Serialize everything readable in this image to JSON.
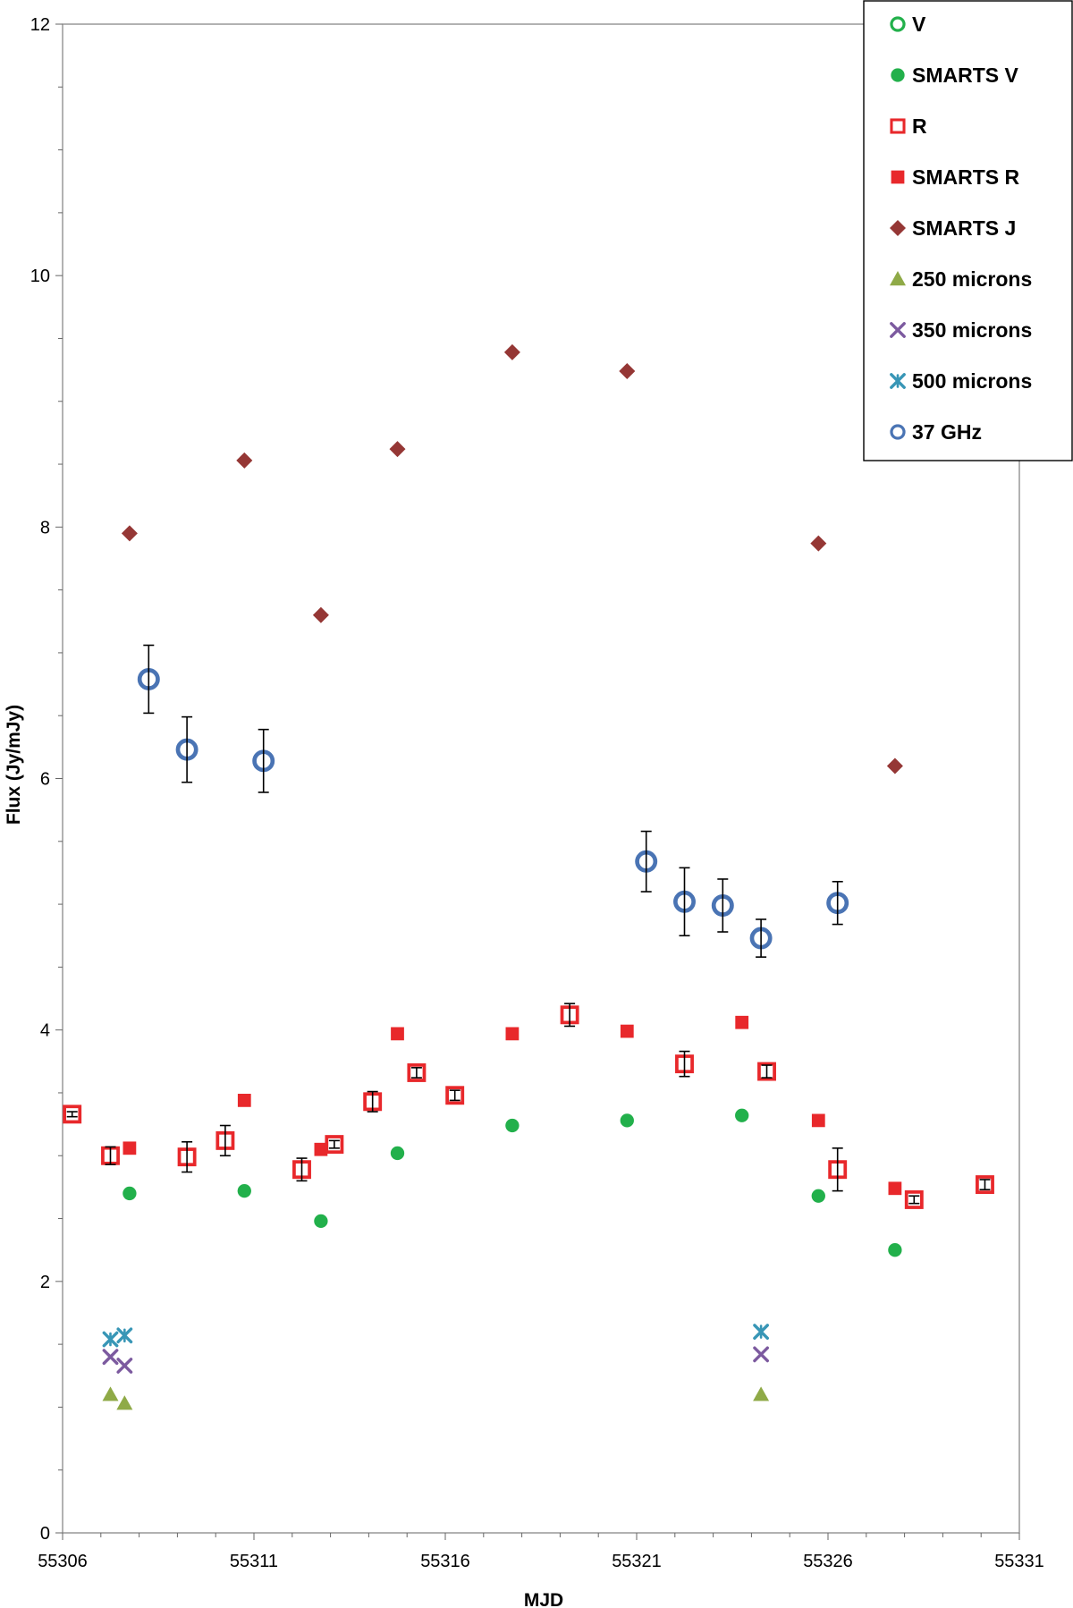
{
  "chart_data": {
    "type": "scatter",
    "title": "",
    "xlabel": "MJD",
    "ylabel": "Flux (Jy/mJy)",
    "xlim": [
      55306,
      55331
    ],
    "ylim": [
      0,
      12
    ],
    "xticks": [
      55306,
      55311,
      55316,
      55321,
      55326,
      55331
    ],
    "yticks": [
      0,
      2,
      4,
      6,
      8,
      10,
      12
    ],
    "grid": false,
    "legend_position": "top-right",
    "series": [
      {
        "name": "V",
        "marker": "circle-open",
        "color": "#22b04b",
        "points": []
      },
      {
        "name": "SMARTS V",
        "marker": "circle-filled",
        "color": "#22b04b",
        "points": [
          {
            "x": 55307.75,
            "y": 2.7
          },
          {
            "x": 55310.75,
            "y": 2.72
          },
          {
            "x": 55312.75,
            "y": 2.48
          },
          {
            "x": 55314.75,
            "y": 3.02
          },
          {
            "x": 55317.75,
            "y": 3.24
          },
          {
            "x": 55320.75,
            "y": 3.28
          },
          {
            "x": 55323.75,
            "y": 3.32
          },
          {
            "x": 55325.75,
            "y": 2.68
          },
          {
            "x": 55327.75,
            "y": 2.25
          }
        ]
      },
      {
        "name": "R",
        "marker": "square-open",
        "color": "#e8282b",
        "points": [
          {
            "x": 55306.25,
            "y": 3.33,
            "err": 0.02
          },
          {
            "x": 55307.25,
            "y": 3.0,
            "err": 0.07
          },
          {
            "x": 55309.25,
            "y": 2.99,
            "err": 0.12
          },
          {
            "x": 55310.25,
            "y": 3.12,
            "err": 0.12
          },
          {
            "x": 55312.25,
            "y": 2.89,
            "err": 0.09
          },
          {
            "x": 55313.1,
            "y": 3.09,
            "err": 0.03
          },
          {
            "x": 55314.1,
            "y": 3.43,
            "err": 0.08
          },
          {
            "x": 55315.25,
            "y": 3.66,
            "err": 0.04
          },
          {
            "x": 55316.25,
            "y": 3.48,
            "err": 0.04
          },
          {
            "x": 55319.25,
            "y": 4.12,
            "err": 0.09
          },
          {
            "x": 55322.25,
            "y": 3.73,
            "err": 0.1
          },
          {
            "x": 55324.4,
            "y": 3.67,
            "err": 0.05
          },
          {
            "x": 55326.25,
            "y": 2.89,
            "err": 0.17
          },
          {
            "x": 55328.25,
            "y": 2.65,
            "err": 0.03
          },
          {
            "x": 55330.1,
            "y": 2.77,
            "err": 0.04
          }
        ]
      },
      {
        "name": "SMARTS R",
        "marker": "square-filled",
        "color": "#e8282b",
        "points": [
          {
            "x": 55307.75,
            "y": 3.06
          },
          {
            "x": 55310.75,
            "y": 3.44
          },
          {
            "x": 55312.75,
            "y": 3.05
          },
          {
            "x": 55314.75,
            "y": 3.97
          },
          {
            "x": 55317.75,
            "y": 3.97
          },
          {
            "x": 55320.75,
            "y": 3.99
          },
          {
            "x": 55323.75,
            "y": 4.06
          },
          {
            "x": 55325.75,
            "y": 3.28
          },
          {
            "x": 55327.75,
            "y": 2.74
          }
        ]
      },
      {
        "name": "SMARTS J",
        "marker": "diamond-filled",
        "color": "#953735",
        "points": [
          {
            "x": 55307.75,
            "y": 7.95
          },
          {
            "x": 55310.75,
            "y": 8.53
          },
          {
            "x": 55312.75,
            "y": 7.3
          },
          {
            "x": 55314.75,
            "y": 8.62
          },
          {
            "x": 55317.75,
            "y": 9.39
          },
          {
            "x": 55320.75,
            "y": 9.24
          },
          {
            "x": 55325.75,
            "y": 7.87
          },
          {
            "x": 55327.75,
            "y": 6.1
          }
        ]
      },
      {
        "name": "250 microns",
        "marker": "triangle-filled",
        "color": "#8faa47",
        "points": [
          {
            "x": 55307.25,
            "y": 1.1
          },
          {
            "x": 55307.62,
            "y": 1.03
          },
          {
            "x": 55324.25,
            "y": 1.1
          }
        ]
      },
      {
        "name": "350 microns",
        "marker": "x",
        "color": "#7c5a9f",
        "points": [
          {
            "x": 55307.25,
            "y": 1.4
          },
          {
            "x": 55307.62,
            "y": 1.33
          },
          {
            "x": 55324.25,
            "y": 1.42
          }
        ]
      },
      {
        "name": "500 microns",
        "marker": "star",
        "color": "#3896b6",
        "points": [
          {
            "x": 55307.25,
            "y": 1.54
          },
          {
            "x": 55307.62,
            "y": 1.57
          },
          {
            "x": 55324.25,
            "y": 1.6
          }
        ]
      },
      {
        "name": "37 GHz",
        "marker": "circle-open",
        "color": "#4a74b4",
        "points": [
          {
            "x": 55308.25,
            "y": 6.79,
            "err": 0.27
          },
          {
            "x": 55309.25,
            "y": 6.23,
            "err": 0.26
          },
          {
            "x": 55311.25,
            "y": 6.14,
            "err": 0.25
          },
          {
            "x": 55321.25,
            "y": 5.34,
            "err": 0.24
          },
          {
            "x": 55322.25,
            "y": 5.02,
            "err": 0.27
          },
          {
            "x": 55323.25,
            "y": 4.99,
            "err": 0.21
          },
          {
            "x": 55324.25,
            "y": 4.73,
            "err": 0.15
          },
          {
            "x": 55326.25,
            "y": 5.01,
            "err": 0.17
          }
        ]
      }
    ]
  }
}
